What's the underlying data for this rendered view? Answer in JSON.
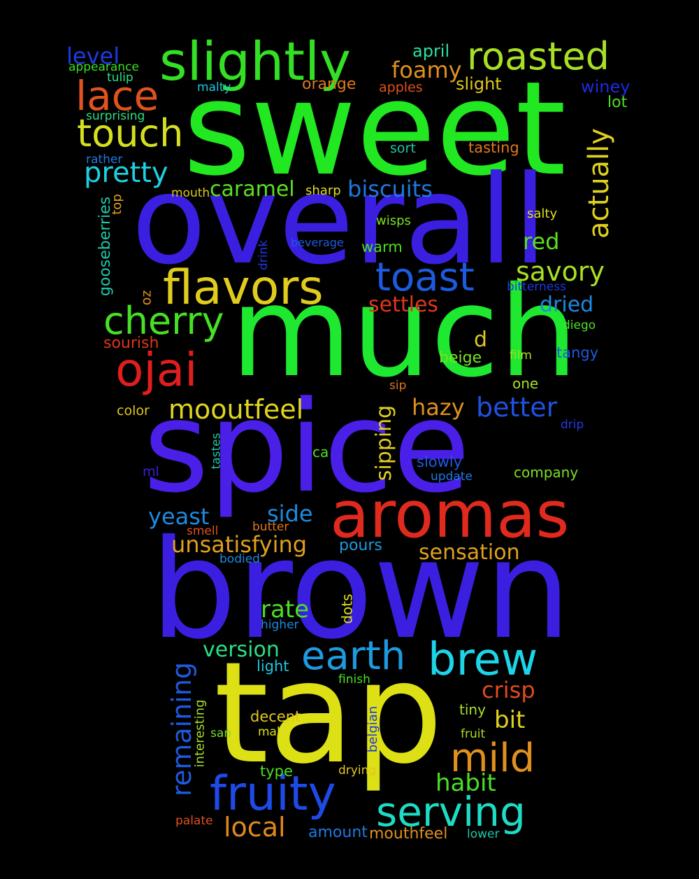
{
  "words": [
    {
      "text": "sweet",
      "color": "#22e822"
    },
    {
      "text": "overall",
      "color": "#3a1fe0"
    },
    {
      "text": "much",
      "color": "#1ee830"
    },
    {
      "text": "spice",
      "color": "#4a1fe8"
    },
    {
      "text": "brown",
      "color": "#3a1fe0"
    },
    {
      "text": "tap",
      "color": "#dce014"
    },
    {
      "text": "aromas",
      "color": "#e02a1e"
    },
    {
      "text": "slightly",
      "color": "#34e024"
    },
    {
      "text": "roasted",
      "color": "#a8e024"
    },
    {
      "text": "flavors",
      "color": "#e0cc1e"
    },
    {
      "text": "cherry",
      "color": "#46e024"
    },
    {
      "text": "ojai",
      "color": "#e01e1e"
    },
    {
      "text": "toast",
      "color": "#1e5ae0"
    },
    {
      "text": "lace",
      "color": "#e0521e"
    },
    {
      "text": "touch",
      "color": "#d4e01e"
    },
    {
      "text": "fruity",
      "color": "#1e4ae8"
    },
    {
      "text": "serving",
      "color": "#1edcc4"
    },
    {
      "text": "brew",
      "color": "#1ed4e8"
    },
    {
      "text": "earth",
      "color": "#1e9ae0"
    },
    {
      "text": "mild",
      "color": "#e0901e"
    },
    {
      "text": "pretty",
      "color": "#1ed0e0"
    },
    {
      "text": "actually",
      "color": "#e0d01e"
    },
    {
      "text": "savory",
      "color": "#a8e024"
    },
    {
      "text": "caramel",
      "color": "#5ae024"
    },
    {
      "text": "biscuits",
      "color": "#1e78e0"
    },
    {
      "text": "mooutfeel",
      "color": "#e0d61e"
    },
    {
      "text": "better",
      "color": "#1e52e0"
    },
    {
      "text": "sipping",
      "color": "#e0d01e"
    },
    {
      "text": "foamy",
      "color": "#e0901e"
    },
    {
      "text": "level",
      "color": "#1e3ae0"
    },
    {
      "text": "red",
      "color": "#5ae024"
    },
    {
      "text": "dried",
      "color": "#1e8ae0"
    },
    {
      "text": "settles",
      "color": "#e0361e"
    },
    {
      "text": "local",
      "color": "#e0881e"
    },
    {
      "text": "remaining",
      "color": "#1e5ae0"
    },
    {
      "text": "unsatisfying",
      "color": "#e0a01e"
    },
    {
      "text": "yeast",
      "color": "#1e8ae0"
    },
    {
      "text": "sensation",
      "color": "#e0a01e"
    },
    {
      "text": "habit",
      "color": "#4ae024"
    },
    {
      "text": "crisp",
      "color": "#e04a1e"
    },
    {
      "text": "version",
      "color": "#2ae084"
    },
    {
      "text": "rate",
      "color": "#4ae024"
    },
    {
      "text": "side",
      "color": "#1e8ae0"
    },
    {
      "text": "hazy",
      "color": "#e0901e"
    },
    {
      "text": "gooseberries",
      "color": "#1ec8a8"
    },
    {
      "text": "bit",
      "color": "#e0d01e"
    },
    {
      "text": "amount",
      "color": "#1e7ae0"
    },
    {
      "text": "mouthfeel",
      "color": "#e0901e"
    },
    {
      "text": "d",
      "color": "#e0c81e"
    },
    {
      "text": "april",
      "color": "#2ae0a0"
    },
    {
      "text": "slight",
      "color": "#e0c81e"
    },
    {
      "text": "orange",
      "color": "#e0781e"
    },
    {
      "text": "apples",
      "color": "#e0521e"
    },
    {
      "text": "winey",
      "color": "#1e2ae0"
    },
    {
      "text": "lot",
      "color": "#4ae024"
    },
    {
      "text": "tasting",
      "color": "#e0781e"
    },
    {
      "text": "sort",
      "color": "#1ec8a8"
    },
    {
      "text": "malty",
      "color": "#1ec8e0"
    },
    {
      "text": "appearance",
      "color": "#3ae024"
    },
    {
      "text": "tulip",
      "color": "#2ae084"
    },
    {
      "text": "surprising",
      "color": "#2ae084"
    },
    {
      "text": "rather",
      "color": "#1e7ae0"
    },
    {
      "text": "top",
      "color": "#e0a01e"
    },
    {
      "text": "mouth",
      "color": "#e0c81e"
    },
    {
      "text": "sharp",
      "color": "#e0e01e"
    },
    {
      "text": "salty",
      "color": "#e0e01e"
    },
    {
      "text": "wisps",
      "color": "#7ae024"
    },
    {
      "text": "beverage",
      "color": "#1e5ae0"
    },
    {
      "text": "drink",
      "color": "#1e3ae0"
    },
    {
      "text": "warm",
      "color": "#4ae024"
    },
    {
      "text": "bitterness",
      "color": "#1e3ae0"
    },
    {
      "text": "oz",
      "color": "#e0901e"
    },
    {
      "text": "diego",
      "color": "#4ae024"
    },
    {
      "text": "sourish",
      "color": "#e0361e"
    },
    {
      "text": "tangy",
      "color": "#1e5ae0"
    },
    {
      "text": "beige",
      "color": "#7ae024"
    },
    {
      "text": "film",
      "color": "#a8e024"
    },
    {
      "text": "sip",
      "color": "#e0781e"
    },
    {
      "text": "one",
      "color": "#a8e024"
    },
    {
      "text": "color",
      "color": "#e0c81e"
    },
    {
      "text": "drip",
      "color": "#1e3ae0"
    },
    {
      "text": "ca",
      "color": "#4ae024"
    },
    {
      "text": "slowly",
      "color": "#1e5ae0"
    },
    {
      "text": "tastes",
      "color": "#1ec8a8"
    },
    {
      "text": "company",
      "color": "#7ae024"
    },
    {
      "text": "ml",
      "color": "#3a1fe0"
    },
    {
      "text": "update",
      "color": "#1e7ae0"
    },
    {
      "text": "smell",
      "color": "#e0521e"
    },
    {
      "text": "butter",
      "color": "#e0781e"
    },
    {
      "text": "bodied",
      "color": "#1e8ae0"
    },
    {
      "text": "pours",
      "color": "#1e9ae0"
    },
    {
      "text": "dots",
      "color": "#e0e01e"
    },
    {
      "text": "higher",
      "color": "#1e8ae0"
    },
    {
      "text": "light",
      "color": "#1ec8e0"
    },
    {
      "text": "finish",
      "color": "#4ae024"
    },
    {
      "text": "interesting",
      "color": "#a8e024"
    },
    {
      "text": "decent",
      "color": "#e0c81e"
    },
    {
      "text": "san",
      "color": "#7ae024"
    },
    {
      "text": "make",
      "color": "#e0e01e"
    },
    {
      "text": "belgian",
      "color": "#1e3ae0"
    },
    {
      "text": "tiny",
      "color": "#a8e024"
    },
    {
      "text": "fruit",
      "color": "#a8e024"
    },
    {
      "text": "type",
      "color": "#4ae024"
    },
    {
      "text": "drying",
      "color": "#e0c81e"
    },
    {
      "text": "palate",
      "color": "#e0521e"
    },
    {
      "text": "lower",
      "color": "#1ec8a8"
    }
  ]
}
